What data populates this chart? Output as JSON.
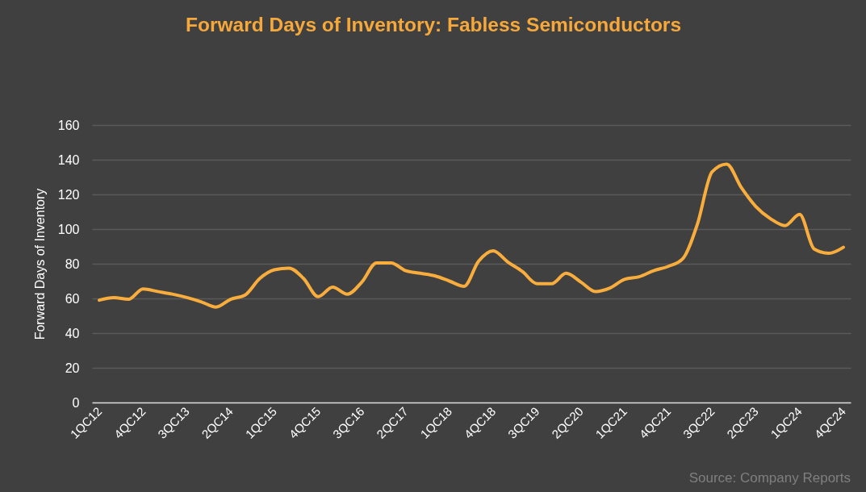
{
  "chart_data": {
    "type": "line",
    "title": "Forward Days of Inventory: Fabless Semiconductors",
    "ylabel": "Forward Days of Inventory",
    "categories": [
      "1QC12",
      null,
      null,
      "4QC12",
      null,
      null,
      "3QC13",
      null,
      null,
      "2QC14",
      null,
      null,
      "1QC15",
      null,
      null,
      "4QC15",
      null,
      null,
      "3QC16",
      null,
      null,
      "2QC17",
      null,
      null,
      "1QC18",
      null,
      null,
      "4QC18",
      null,
      null,
      "3QC19",
      null,
      null,
      "2QC20",
      null,
      null,
      "1QC21",
      null,
      null,
      "4QC21",
      null,
      null,
      "3QC22",
      null,
      null,
      "2QC23",
      null,
      null,
      "1QC24",
      null,
      null,
      "4QC24"
    ],
    "series": [
      {
        "color": "#f9ad3d",
        "values": [
          59,
          60.5,
          59.5,
          65.5,
          64,
          62.5,
          60.5,
          58,
          55,
          59.5,
          62,
          71.5,
          76.5,
          77.5,
          71.5,
          61,
          66.5,
          62.5,
          69.5,
          80.5,
          80.5,
          76,
          74.5,
          73,
          70,
          67,
          81.5,
          87.5,
          81,
          75.5,
          68.5,
          68.5,
          74.5,
          69.5,
          64,
          66,
          71,
          72.5,
          76,
          78.5,
          83,
          103,
          133,
          137.5,
          124,
          113,
          106,
          102,
          108.5,
          88.5,
          86,
          89.5
        ]
      }
    ],
    "ylim": [
      0,
      160
    ],
    "yticks": [
      0,
      20,
      40,
      60,
      80,
      100,
      120,
      140,
      160
    ],
    "grid": "y",
    "annotations": [
      "Source: Company Reports"
    ]
  }
}
